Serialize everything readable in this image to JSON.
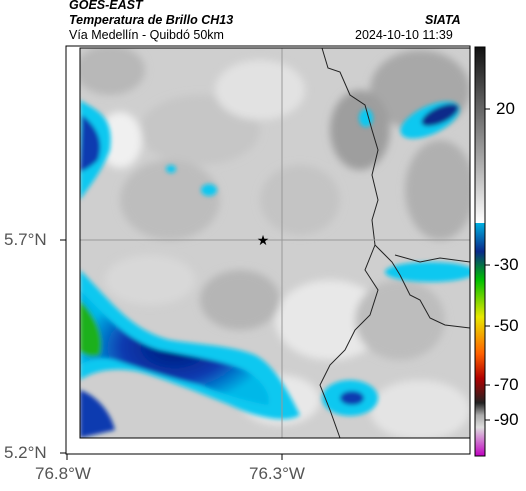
{
  "header": {
    "satellite": "GOES-EAST",
    "product": "Temperatura de Brillo CH13",
    "region": "Vía Medellín - Quibdó 50km",
    "org": "SIATA",
    "datetime": "2024-10-10 11:39"
  },
  "map": {
    "lat_labels": [
      "5.7°N",
      "5.2°N"
    ],
    "lon_labels": [
      "76.8°W",
      "76.3°W"
    ],
    "marker": "star-marker"
  },
  "colorbar": {
    "ticks": [
      "20",
      "-30",
      "-50",
      "-70",
      "-90"
    ]
  },
  "colors": {
    "frame": "#000000",
    "grid": "#999999",
    "border": "#222222"
  }
}
